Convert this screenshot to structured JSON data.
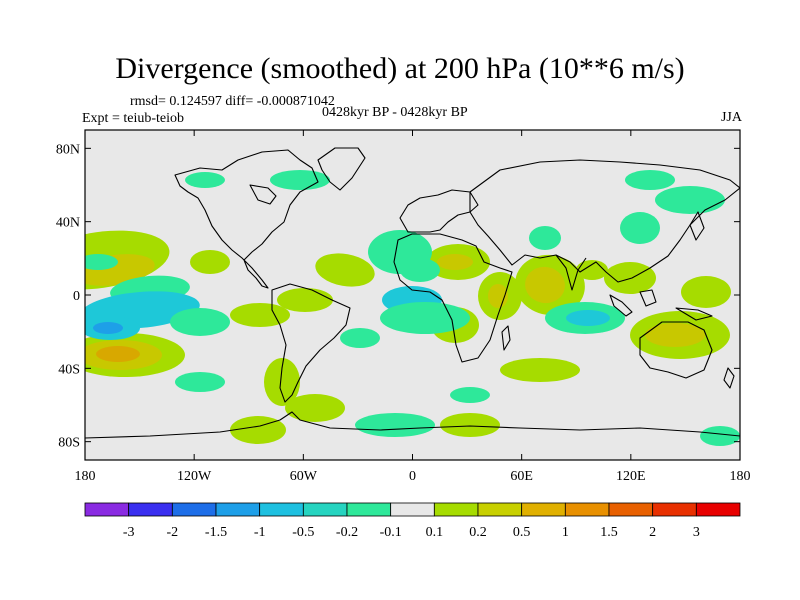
{
  "title": "Divergence (smoothed) at 200 hPa (10**6 m/s)",
  "stats": "rmsd= 0.124597 diff= -0.000871042",
  "experiment": "Expt = teiub-teiob",
  "center_string": "0428kyr BP - 0428kyr BP",
  "season": "JJA",
  "map": {
    "projection": "cylindrical equidistant",
    "lon_range": [
      -180,
      180
    ],
    "lat_range": [
      -90,
      90
    ],
    "lat_ticks": [
      {
        "value": 80,
        "label": "80N"
      },
      {
        "value": 40,
        "label": "40N"
      },
      {
        "value": 0,
        "label": "0"
      },
      {
        "value": -40,
        "label": "40S"
      },
      {
        "value": -80,
        "label": "80S"
      }
    ],
    "lon_ticks": [
      {
        "value": -180,
        "label": "180"
      },
      {
        "value": -120,
        "label": "120W"
      },
      {
        "value": -60,
        "label": "60W"
      },
      {
        "value": 0,
        "label": "0"
      },
      {
        "value": 60,
        "label": "60E"
      },
      {
        "value": 120,
        "label": "120E"
      },
      {
        "value": 180,
        "label": "180"
      }
    ],
    "background_color": "#e8e8e8"
  },
  "colorbar": {
    "labels": [
      "-3",
      "-2",
      "-1.5",
      "-1",
      "-0.5",
      "-0.2",
      "-0.1",
      "0.1",
      "0.2",
      "0.5",
      "1",
      "1.5",
      "2",
      "3"
    ],
    "colors": [
      "#8a2be2",
      "#3a2ff0",
      "#1e6ee8",
      "#1e9fe8",
      "#1ec0e0",
      "#26d4c0",
      "#2ee89a",
      "#e8e8e8",
      "#a6dc00",
      "#c8d000",
      "#e0b000",
      "#e89000",
      "#e86000",
      "#e83000",
      "#e80000"
    ]
  },
  "contour_legend": {
    "pos_light": "#a6dc00",
    "pos_mid": "#c8c800",
    "pos_strong": "#d8a800",
    "neg_light": "#2ee89a",
    "neg_mid": "#1ec8d8",
    "neg_strong": "#1e9fe8"
  }
}
